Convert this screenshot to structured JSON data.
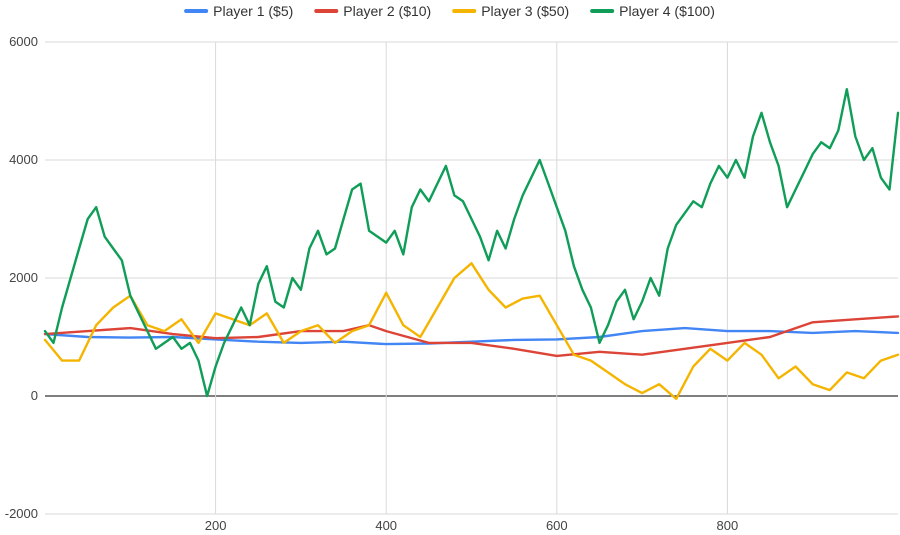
{
  "chart_data": {
    "type": "line",
    "title": "",
    "xlabel": "",
    "ylabel": "",
    "xlim": [
      0,
      1000
    ],
    "ylim": [
      -2000,
      6000
    ],
    "x_ticks": [
      200,
      400,
      600,
      800
    ],
    "y_ticks": [
      6000,
      4000,
      2000,
      0,
      -2000
    ],
    "x_tick_labels": [
      "200",
      "400",
      "600",
      "800"
    ],
    "y_tick_labels": [
      "6000",
      "4000",
      "2000",
      "0",
      "-2000"
    ],
    "grid": true,
    "legend_position": "top",
    "series": [
      {
        "name": "Player 1 ($5)",
        "color": "#4285f4",
        "points": [
          [
            0,
            1050
          ],
          [
            50,
            1000
          ],
          [
            100,
            990
          ],
          [
            150,
            1000
          ],
          [
            200,
            960
          ],
          [
            250,
            920
          ],
          [
            300,
            900
          ],
          [
            350,
            920
          ],
          [
            400,
            880
          ],
          [
            450,
            890
          ],
          [
            500,
            920
          ],
          [
            550,
            950
          ],
          [
            600,
            960
          ],
          [
            650,
            1000
          ],
          [
            700,
            1100
          ],
          [
            750,
            1150
          ],
          [
            800,
            1100
          ],
          [
            850,
            1100
          ],
          [
            900,
            1070
          ],
          [
            950,
            1100
          ],
          [
            1000,
            1070
          ]
        ]
      },
      {
        "name": "Player 2 ($10)",
        "color": "#db4437",
        "points": [
          [
            0,
            1050
          ],
          [
            50,
            1100
          ],
          [
            100,
            1150
          ],
          [
            150,
            1050
          ],
          [
            200,
            980
          ],
          [
            250,
            1000
          ],
          [
            300,
            1100
          ],
          [
            350,
            1100
          ],
          [
            380,
            1200
          ],
          [
            400,
            1100
          ],
          [
            450,
            900
          ],
          [
            500,
            900
          ],
          [
            550,
            800
          ],
          [
            600,
            680
          ],
          [
            650,
            750
          ],
          [
            700,
            700
          ],
          [
            750,
            800
          ],
          [
            800,
            900
          ],
          [
            850,
            1000
          ],
          [
            900,
            1250
          ],
          [
            950,
            1300
          ],
          [
            1000,
            1350
          ]
        ]
      },
      {
        "name": "Player 3 ($50)",
        "color": "#f4b400",
        "points": [
          [
            0,
            950
          ],
          [
            20,
            600
          ],
          [
            40,
            600
          ],
          [
            60,
            1200
          ],
          [
            80,
            1500
          ],
          [
            100,
            1700
          ],
          [
            120,
            1200
          ],
          [
            140,
            1100
          ],
          [
            160,
            1300
          ],
          [
            180,
            900
          ],
          [
            200,
            1400
          ],
          [
            220,
            1300
          ],
          [
            240,
            1200
          ],
          [
            260,
            1400
          ],
          [
            280,
            900
          ],
          [
            300,
            1100
          ],
          [
            320,
            1200
          ],
          [
            340,
            900
          ],
          [
            360,
            1100
          ],
          [
            380,
            1200
          ],
          [
            400,
            1750
          ],
          [
            420,
            1200
          ],
          [
            440,
            1000
          ],
          [
            460,
            1500
          ],
          [
            480,
            2000
          ],
          [
            500,
            2250
          ],
          [
            520,
            1800
          ],
          [
            540,
            1500
          ],
          [
            560,
            1650
          ],
          [
            580,
            1700
          ],
          [
            600,
            1200
          ],
          [
            620,
            700
          ],
          [
            640,
            600
          ],
          [
            660,
            400
          ],
          [
            680,
            200
          ],
          [
            700,
            50
          ],
          [
            720,
            200
          ],
          [
            740,
            -50
          ],
          [
            760,
            500
          ],
          [
            780,
            800
          ],
          [
            800,
            600
          ],
          [
            820,
            900
          ],
          [
            840,
            700
          ],
          [
            860,
            300
          ],
          [
            880,
            500
          ],
          [
            900,
            200
          ],
          [
            920,
            100
          ],
          [
            940,
            400
          ],
          [
            960,
            300
          ],
          [
            980,
            600
          ],
          [
            1000,
            700
          ]
        ]
      },
      {
        "name": "Player 4 ($100)",
        "color": "#0f9d58",
        "points": [
          [
            0,
            1100
          ],
          [
            10,
            900
          ],
          [
            20,
            1500
          ],
          [
            30,
            2000
          ],
          [
            40,
            2500
          ],
          [
            50,
            3000
          ],
          [
            60,
            3200
          ],
          [
            70,
            2700
          ],
          [
            80,
            2500
          ],
          [
            90,
            2300
          ],
          [
            100,
            1700
          ],
          [
            110,
            1400
          ],
          [
            120,
            1100
          ],
          [
            130,
            800
          ],
          [
            140,
            900
          ],
          [
            150,
            1000
          ],
          [
            160,
            800
          ],
          [
            170,
            900
          ],
          [
            180,
            600
          ],
          [
            190,
            0
          ],
          [
            200,
            500
          ],
          [
            210,
            900
          ],
          [
            220,
            1200
          ],
          [
            230,
            1500
          ],
          [
            240,
            1200
          ],
          [
            250,
            1900
          ],
          [
            260,
            2200
          ],
          [
            270,
            1600
          ],
          [
            280,
            1500
          ],
          [
            290,
            2000
          ],
          [
            300,
            1800
          ],
          [
            310,
            2500
          ],
          [
            320,
            2800
          ],
          [
            330,
            2400
          ],
          [
            340,
            2500
          ],
          [
            350,
            3000
          ],
          [
            360,
            3500
          ],
          [
            370,
            3600
          ],
          [
            380,
            2800
          ],
          [
            390,
            2700
          ],
          [
            400,
            2600
          ],
          [
            410,
            2800
          ],
          [
            420,
            2400
          ],
          [
            430,
            3200
          ],
          [
            440,
            3500
          ],
          [
            450,
            3300
          ],
          [
            460,
            3600
          ],
          [
            470,
            3900
          ],
          [
            480,
            3400
          ],
          [
            490,
            3300
          ],
          [
            500,
            3000
          ],
          [
            510,
            2700
          ],
          [
            520,
            2300
          ],
          [
            530,
            2800
          ],
          [
            540,
            2500
          ],
          [
            550,
            3000
          ],
          [
            560,
            3400
          ],
          [
            570,
            3700
          ],
          [
            580,
            4000
          ],
          [
            590,
            3600
          ],
          [
            600,
            3200
          ],
          [
            610,
            2800
          ],
          [
            620,
            2200
          ],
          [
            630,
            1800
          ],
          [
            640,
            1500
          ],
          [
            650,
            900
          ],
          [
            660,
            1200
          ],
          [
            670,
            1600
          ],
          [
            680,
            1800
          ],
          [
            690,
            1300
          ],
          [
            700,
            1600
          ],
          [
            710,
            2000
          ],
          [
            720,
            1700
          ],
          [
            730,
            2500
          ],
          [
            740,
            2900
          ],
          [
            750,
            3100
          ],
          [
            760,
            3300
          ],
          [
            770,
            3200
          ],
          [
            780,
            3600
          ],
          [
            790,
            3900
          ],
          [
            800,
            3700
          ],
          [
            810,
            4000
          ],
          [
            820,
            3700
          ],
          [
            830,
            4400
          ],
          [
            840,
            4800
          ],
          [
            850,
            4300
          ],
          [
            860,
            3900
          ],
          [
            870,
            3200
          ],
          [
            880,
            3500
          ],
          [
            890,
            3800
          ],
          [
            900,
            4100
          ],
          [
            910,
            4300
          ],
          [
            920,
            4200
          ],
          [
            930,
            4500
          ],
          [
            940,
            5200
          ],
          [
            950,
            4400
          ],
          [
            960,
            4000
          ],
          [
            970,
            4200
          ],
          [
            980,
            3700
          ],
          [
            990,
            3500
          ],
          [
            1000,
            4800
          ]
        ]
      }
    ]
  }
}
